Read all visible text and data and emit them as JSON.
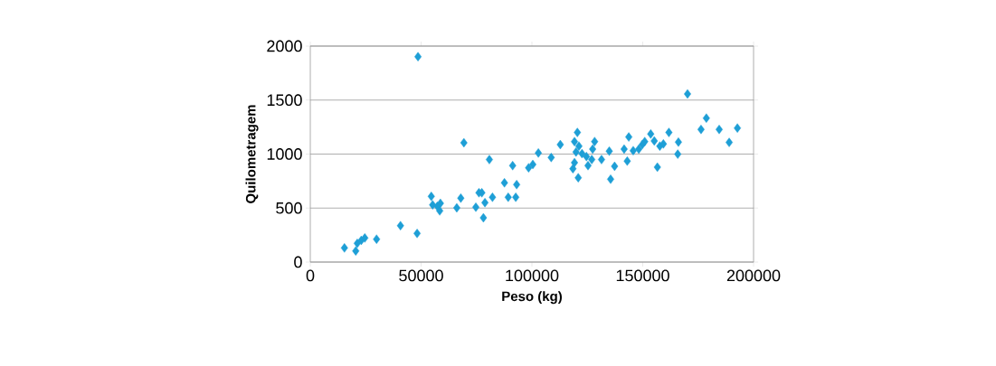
{
  "chart_data": {
    "type": "scatter",
    "xlabel": "Peso (kg)",
    "ylabel": "Quilometragem",
    "color": "#1e9fd6",
    "marker": "diamond",
    "grid": "y",
    "xlim": [
      0,
      200000
    ],
    "ylim": [
      0,
      2000
    ],
    "xticks": [
      0,
      50000,
      100000,
      150000,
      200000
    ],
    "yticks": [
      0,
      500,
      1000,
      1500,
      2000
    ],
    "x": [
      15400,
      20500,
      21200,
      23000,
      24600,
      29900,
      40700,
      48200,
      48600,
      54600,
      55200,
      57300,
      58400,
      58700,
      66100,
      67900,
      69300,
      74700,
      76100,
      77400,
      78100,
      78800,
      80800,
      82200,
      87600,
      89300,
      91300,
      92700,
      93100,
      98500,
      100400,
      102900,
      108700,
      112800,
      120500,
      119200,
      121200,
      119900,
      119200,
      118500,
      120900,
      122600,
      124600,
      125300,
      127000,
      128300,
      127400,
      131400,
      134900,
      137300,
      135500,
      141600,
      143000,
      143700,
      145700,
      148200,
      149800,
      150900,
      153600,
      155200,
      156600,
      157700,
      159300,
      161800,
      166100,
      165800,
      170200,
      176300,
      178700,
      184500,
      189000,
      192700
    ],
    "values": [
      131,
      103,
      173,
      201,
      223,
      212,
      337,
      265,
      1902,
      608,
      530,
      516,
      474,
      544,
      502,
      592,
      1105,
      508,
      642,
      642,
      410,
      550,
      949,
      600,
      734,
      600,
      893,
      600,
      717,
      873,
      904,
      1010,
      968,
      1088,
      1200,
      1116,
      1074,
      1019,
      921,
      865,
      781,
      1004,
      977,
      893,
      949,
      1116,
      1046,
      949,
      1027,
      887,
      767,
      1046,
      935,
      1158,
      1032,
      1046,
      1088,
      1116,
      1186,
      1122,
      879,
      1074,
      1094,
      1200,
      1111,
      999,
      1557,
      1228,
      1333,
      1228,
      1108,
      1241
    ]
  }
}
